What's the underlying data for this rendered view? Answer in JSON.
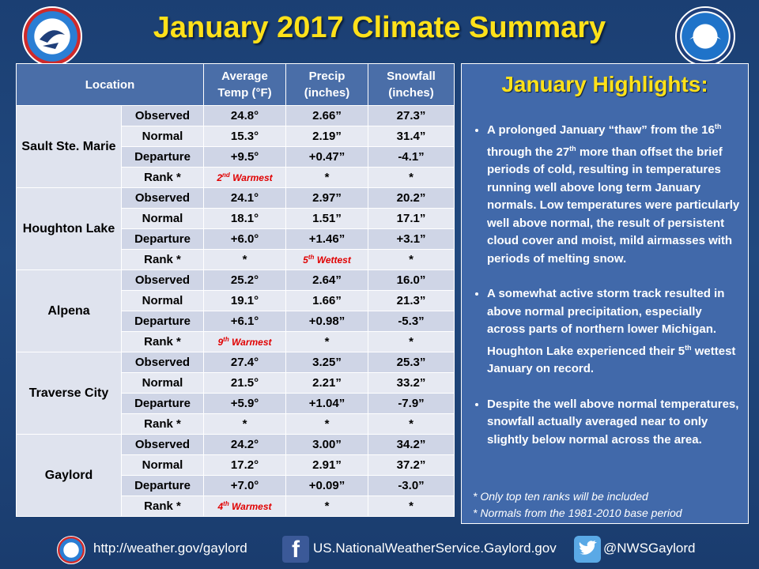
{
  "title": "January 2017 Climate Summary",
  "table": {
    "headers": [
      "Location",
      "Average\nTemp (°F)",
      "Precip\n(inches)",
      "Snowfall\n(inches)"
    ],
    "locations": [
      {
        "name": "Sault Ste. Marie",
        "rows": [
          {
            "type": "Observed",
            "temp": "24.8°",
            "precip": "2.66”",
            "snow": "27.3”"
          },
          {
            "type": "Normal",
            "temp": "15.3°",
            "precip": "2.19”",
            "snow": "31.4”"
          },
          {
            "type": "Departure",
            "temp": "+9.5°",
            "precip": "+0.47”",
            "snow": "-4.1”"
          },
          {
            "type": "Rank *",
            "temp": "2nd Warmest",
            "precip": "*",
            "snow": "*"
          }
        ]
      },
      {
        "name": "Houghton Lake",
        "rows": [
          {
            "type": "Observed",
            "temp": "24.1°",
            "precip": "2.97”",
            "snow": "20.2”"
          },
          {
            "type": "Normal",
            "temp": "18.1°",
            "precip": "1.51”",
            "snow": "17.1”"
          },
          {
            "type": "Departure",
            "temp": "+6.0°",
            "precip": "+1.46”",
            "snow": "+3.1”"
          },
          {
            "type": "Rank *",
            "temp": "*",
            "precip": "5th Wettest",
            "snow": "*"
          }
        ]
      },
      {
        "name": "Alpena",
        "rows": [
          {
            "type": "Observed",
            "temp": "25.2°",
            "precip": "2.64”",
            "snow": "16.0”"
          },
          {
            "type": "Normal",
            "temp": "19.1°",
            "precip": "1.66”",
            "snow": "21.3”"
          },
          {
            "type": "Departure",
            "temp": "+6.1°",
            "precip": "+0.98”",
            "snow": "-5.3”"
          },
          {
            "type": "Rank *",
            "temp": "9th Warmest",
            "precip": "*",
            "snow": "*"
          }
        ]
      },
      {
        "name": "Traverse City",
        "rows": [
          {
            "type": "Observed",
            "temp": "27.4°",
            "precip": "3.25”",
            "snow": "25.3”"
          },
          {
            "type": "Normal",
            "temp": "21.5°",
            "precip": "2.21”",
            "snow": "33.2”"
          },
          {
            "type": "Departure",
            "temp": "+5.9°",
            "precip": "+1.04”",
            "snow": "-7.9”"
          },
          {
            "type": "Rank *",
            "temp": "*",
            "precip": "*",
            "snow": "*"
          }
        ]
      },
      {
        "name": "Gaylord",
        "rows": [
          {
            "type": "Observed",
            "temp": "24.2°",
            "precip": "3.00”",
            "snow": "34.2”"
          },
          {
            "type": "Normal",
            "temp": "17.2°",
            "precip": "2.91”",
            "snow": "37.2”"
          },
          {
            "type": "Departure",
            "temp": "+7.0°",
            "precip": "+0.09”",
            "snow": "-3.0”"
          },
          {
            "type": "Rank *",
            "temp": "4th Warmest",
            "precip": "*",
            "snow": "*"
          }
        ]
      }
    ]
  },
  "highlights": {
    "title": "January Highlights:",
    "bullets": [
      "A prolonged January “thaw” from the 16th through the 27th more than offset the brief periods of cold, resulting in temperatures running well above long term January normals.   Low temperatures were particularly well above normal, the result of persistent cloud cover and moist, mild airmasses with periods of melting snow.",
      "A somewhat active storm track resulted in above normal precipitation, especially across parts of northern lower Michigan. Houghton Lake experienced their 5th wettest January on record.",
      "Despite the well above normal temperatures, snowfall actually averaged near to only slightly below normal across the area."
    ],
    "notes": [
      "*  Only top ten ranks will be included",
      "*  Normals from the 1981-2010 base period"
    ]
  },
  "footer": {
    "website": "http://weather.gov/gaylord",
    "facebook": "US.NationalWeatherService.Gaylord.gov",
    "twitter": "@NWSGaylord"
  },
  "logos": {
    "nws": "NATIONAL WEATHER SERVICE",
    "noaa": "NOAA"
  },
  "colors": {
    "background": "#1f4577",
    "title": "#ffe11a",
    "table_header": "#4a6ea8",
    "panel": "#4169aa",
    "rank_red": "#e00000"
  },
  "icons": [
    "nws-logo-icon",
    "noaa-logo-icon",
    "facebook-icon",
    "twitter-icon"
  ]
}
